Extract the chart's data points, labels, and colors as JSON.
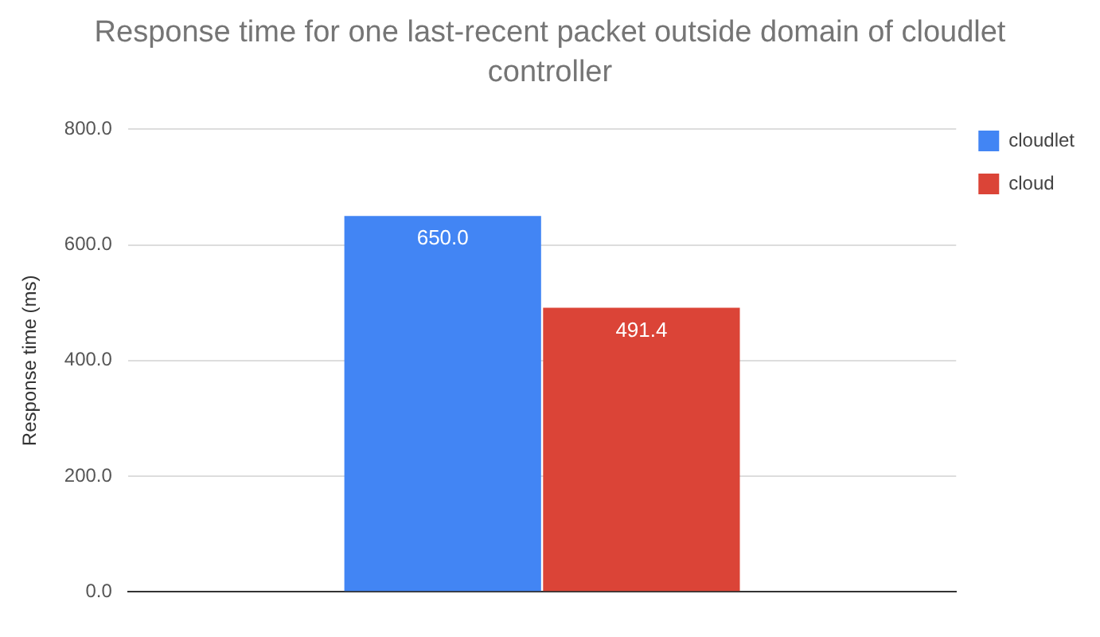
{
  "chart_data": {
    "type": "bar",
    "title": "Response time for one last-recent packet outside domain of cloudlet controller",
    "ylabel": "Response time (ms)",
    "categories": [
      null
    ],
    "series": [
      {
        "name": "cloudlet",
        "color": "#4285f4",
        "values": [
          650.0
        ],
        "value_labels": [
          "650.0"
        ]
      },
      {
        "name": "cloud",
        "color": "#db4437",
        "values": [
          491.4
        ],
        "value_labels": [
          "491.4"
        ]
      }
    ],
    "ylim": [
      0,
      800
    ],
    "yticks": [
      {
        "value": 0,
        "label": "0.0"
      },
      {
        "value": 200,
        "label": "200.0"
      },
      {
        "value": 400,
        "label": "400.0"
      },
      {
        "value": 600,
        "label": "600.0"
      },
      {
        "value": 800,
        "label": "800.0"
      }
    ],
    "grid": "y",
    "legend": "top right"
  }
}
